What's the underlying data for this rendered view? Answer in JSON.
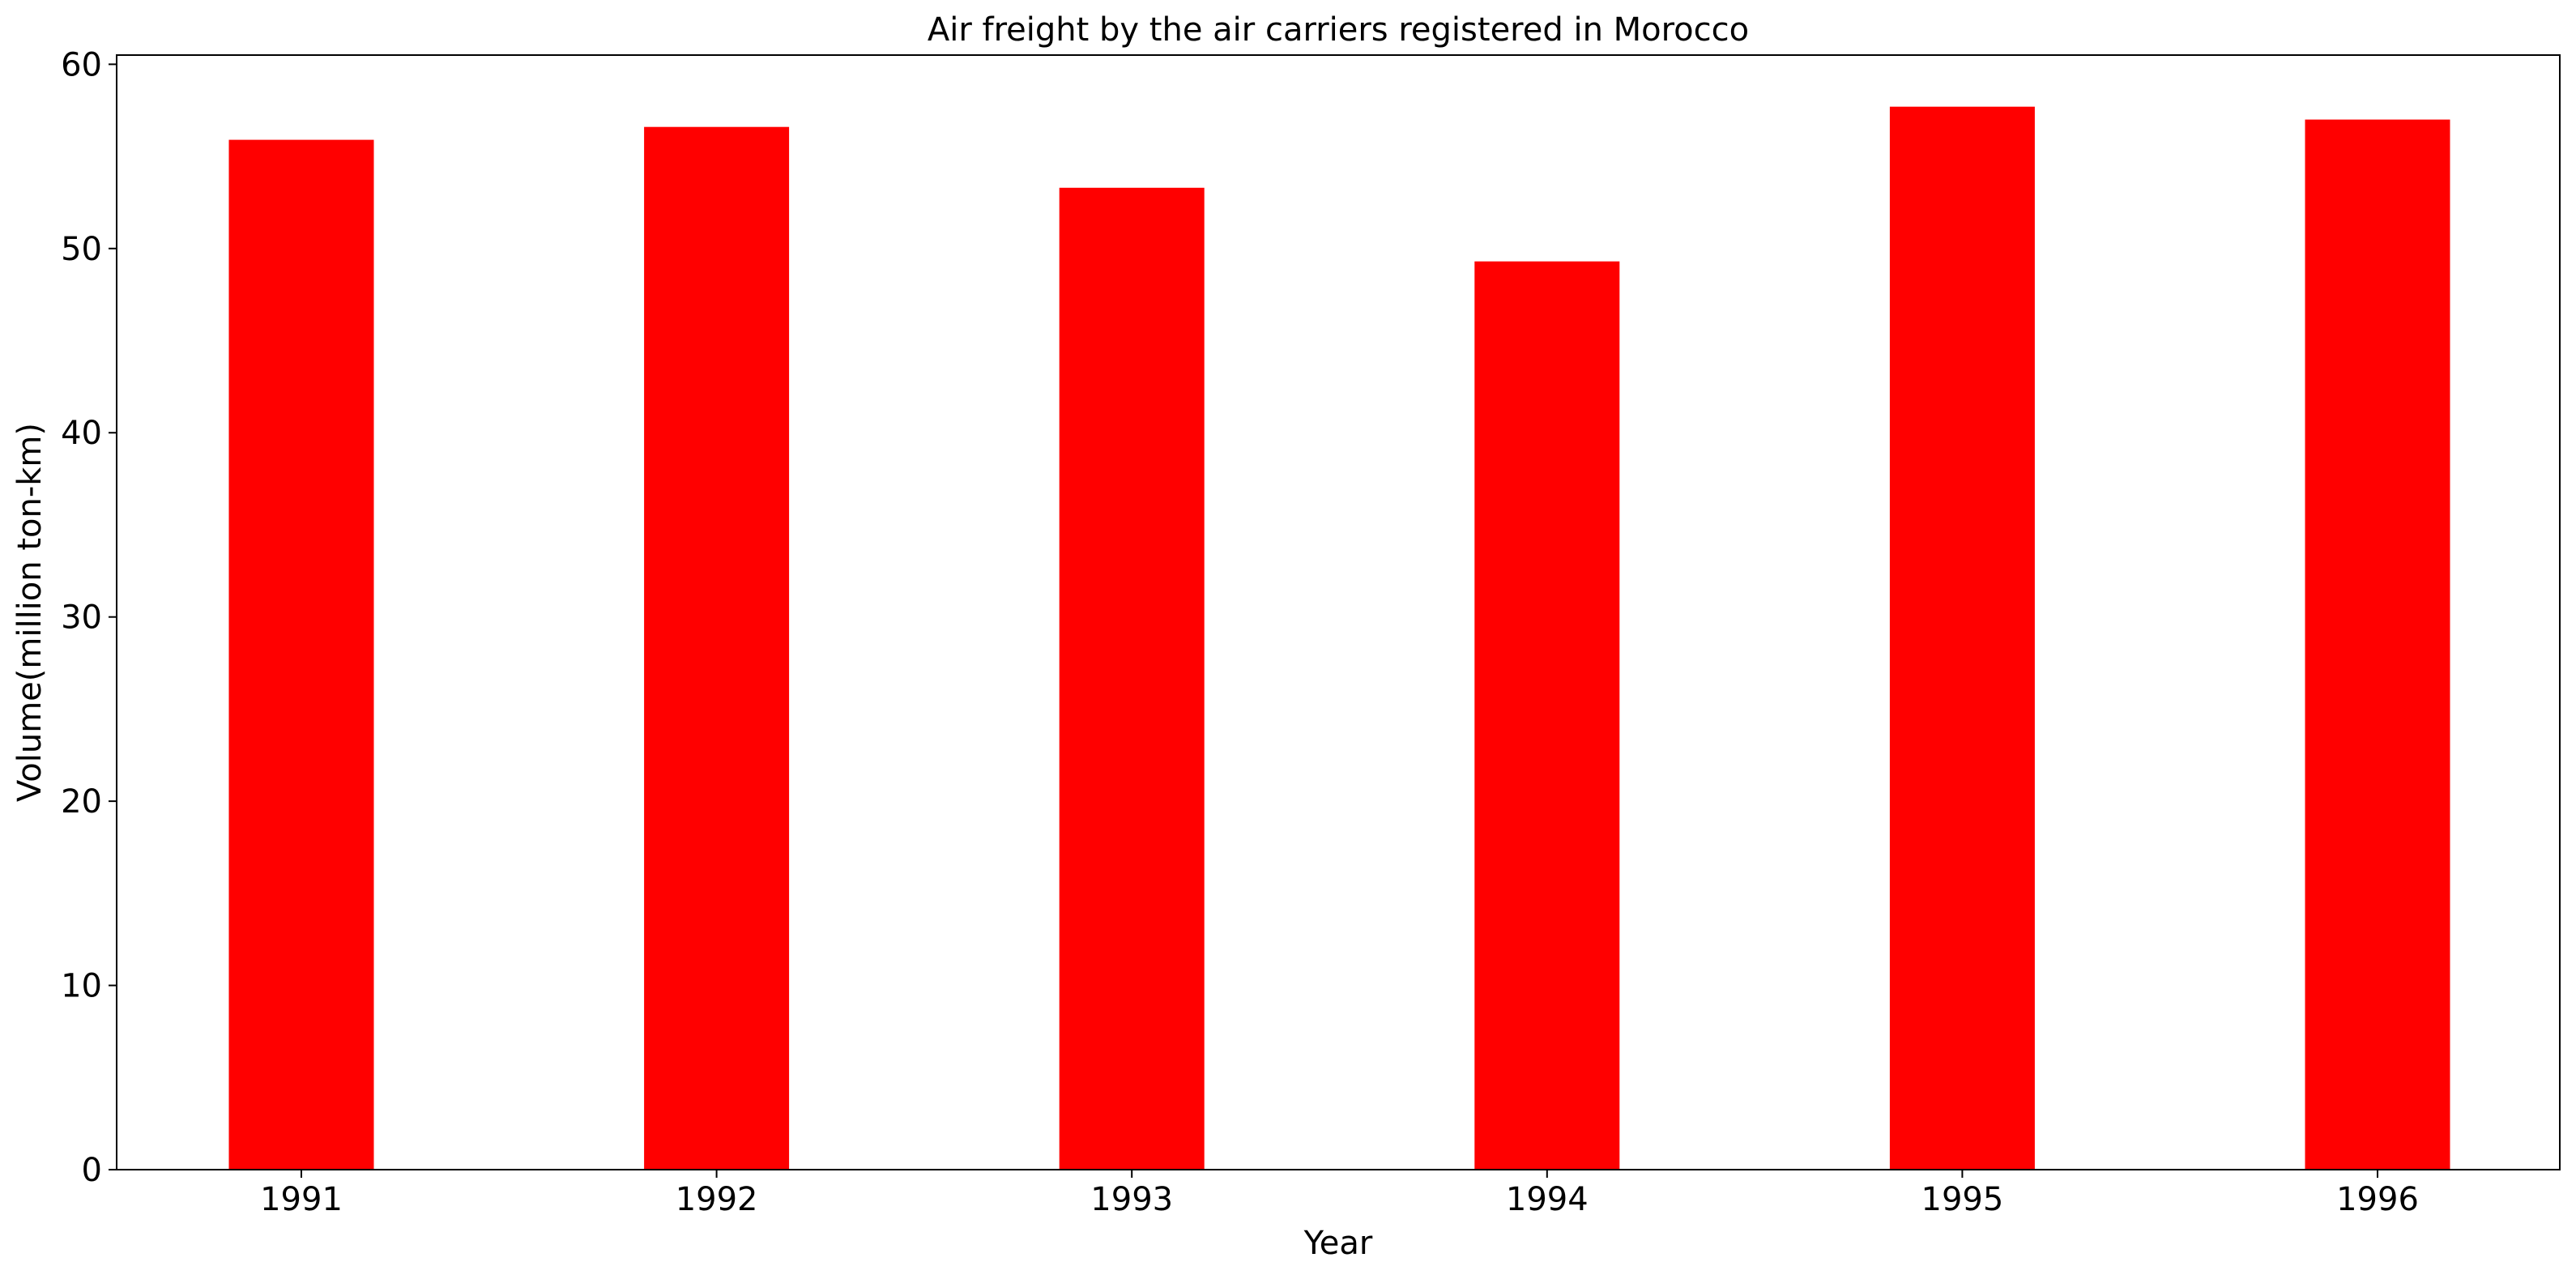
{
  "chart_data": {
    "type": "bar",
    "title": "Air freight by the air carriers registered in Morocco",
    "xlabel": "Year",
    "ylabel": "Volume(million ton-km)",
    "categories": [
      "1991",
      "1992",
      "1993",
      "1994",
      "1995",
      "1996"
    ],
    "series": [
      {
        "values": [
          55.9,
          56.6,
          53.3,
          49.3,
          57.7,
          57.0
        ]
      }
    ],
    "ylim": [
      0,
      60.5
    ],
    "yticks": [
      0,
      10,
      20,
      30,
      40,
      50,
      60
    ],
    "grid": false,
    "bar_color": "#ff0000"
  }
}
